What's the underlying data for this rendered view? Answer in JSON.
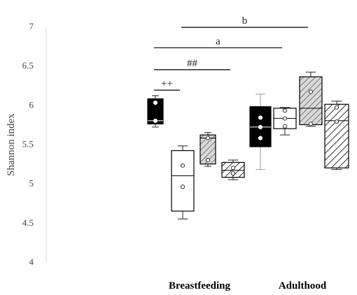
{
  "chart_data": {
    "type": "box",
    "ylabel": "Shannon index",
    "ylim": [
      4,
      7
    ],
    "yticks": [
      "4",
      "4.5",
      "5",
      "5.5",
      "6",
      "6.5",
      "7"
    ],
    "grid": false,
    "groups": [
      "Breastfeeding",
      "Adulthood"
    ],
    "boxes": [
      {
        "group": "Breastfeeding",
        "fill": "black",
        "min": 5.72,
        "q1": 5.76,
        "median": 5.8,
        "q3": 6.08,
        "max": 6.12,
        "points": [
          5.8,
          6.03
        ]
      },
      {
        "group": "Breastfeeding",
        "fill": "white",
        "min": 4.55,
        "q1": 4.65,
        "median": 5.1,
        "q3": 5.42,
        "max": 5.48,
        "points": [
          4.96,
          5.23
        ]
      },
      {
        "group": "Breastfeeding",
        "fill": "gray-hatched",
        "min": 5.22,
        "q1": 5.25,
        "median": 5.58,
        "q3": 5.62,
        "max": 5.65,
        "points": [
          5.3,
          5.58
        ]
      },
      {
        "group": "Breastfeeding",
        "fill": "white-hatched",
        "min": 5.05,
        "q1": 5.08,
        "median": 5.17,
        "q3": 5.27,
        "max": 5.3,
        "points": [
          5.13,
          5.2
        ]
      },
      {
        "group": "Adulthood",
        "fill": "black",
        "min": 5.18,
        "q1": 5.47,
        "median": 5.72,
        "q3": 5.98,
        "max": 6.14,
        "points": [
          5.58,
          5.72,
          5.84
        ]
      },
      {
        "group": "Adulthood",
        "fill": "white",
        "min": 5.62,
        "q1": 5.7,
        "median": 5.83,
        "q3": 5.96,
        "max": 5.97,
        "points": [
          5.73,
          5.83,
          5.93
        ]
      },
      {
        "group": "Adulthood",
        "fill": "gray-hatched",
        "min": 5.73,
        "q1": 5.75,
        "median": 5.96,
        "q3": 6.36,
        "max": 6.42,
        "points": [
          5.76,
          6.17
        ]
      },
      {
        "group": "Adulthood",
        "fill": "white-hatched",
        "min": 5.18,
        "q1": 5.2,
        "median": 5.8,
        "q3": 6.01,
        "max": 6.05,
        "points": [
          5.79,
          5.97
        ]
      }
    ],
    "annotations": [
      {
        "label": "++",
        "from": 0,
        "to": 1,
        "y": 6.19
      },
      {
        "label": "##",
        "from": 0,
        "to": 3,
        "y": 6.45
      },
      {
        "label": "a",
        "from": 0,
        "to": 5,
        "y": 6.73
      },
      {
        "label": "b",
        "from": 1,
        "to": 6,
        "y": 6.99
      }
    ]
  }
}
